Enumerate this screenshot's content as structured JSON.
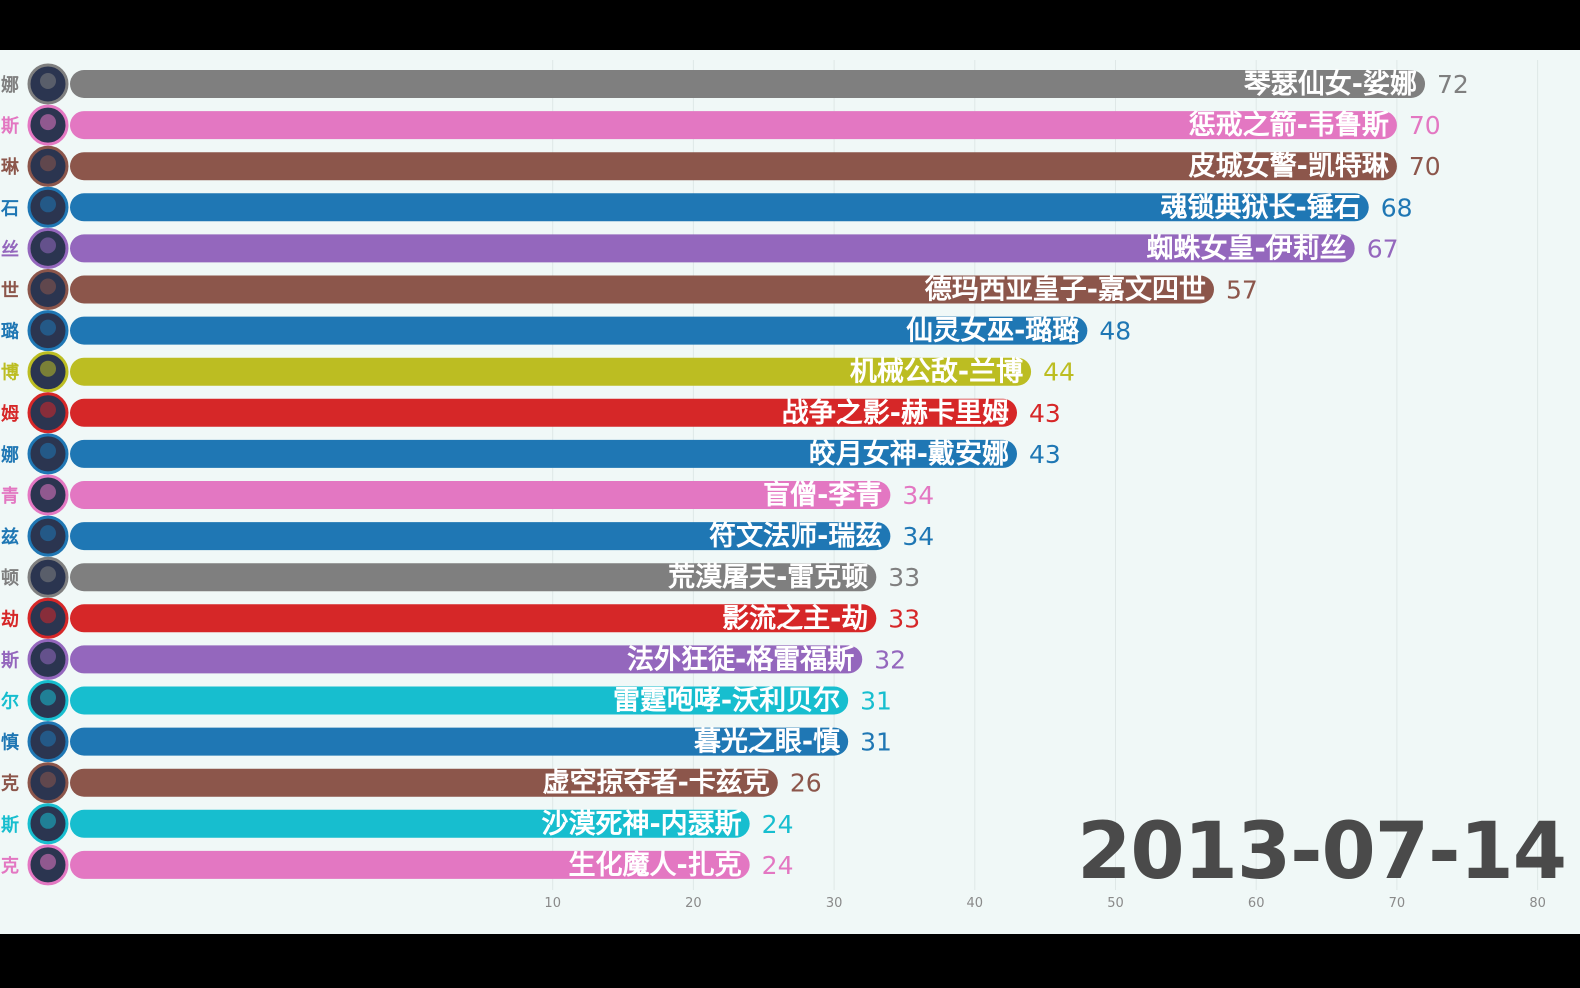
{
  "chart_data": {
    "type": "bar",
    "orientation": "horizontal",
    "frame_label": "2013-07-14",
    "xlim": [
      0,
      80
    ],
    "x_ticks": [
      10,
      20,
      30,
      40,
      50,
      60,
      70,
      80
    ],
    "grid": "vertical",
    "categories": [
      "琴瑟仙女-娑娜",
      "惩戒之箭-韦鲁斯",
      "皮城女警-凯特琳",
      "魂锁典狱长-锤石",
      "蜘蛛女皇-伊莉丝",
      "德玛西亚皇子-嘉文四世",
      "仙灵女巫-璐璐",
      "机械公敌-兰博",
      "战争之影-赫卡里姆",
      "皎月女神-戴安娜",
      "盲僧-李青",
      "符文法师-瑞兹",
      "荒漠屠夫-雷克顿",
      "影流之主-劫",
      "法外狂徒-格雷福斯",
      "雷霆咆哮-沃利贝尔",
      "暮光之眼-慎",
      "虚空掠夺者-卡兹克",
      "沙漠死神-内瑟斯",
      "生化魔人-扎克"
    ],
    "values": [
      72,
      70,
      70,
      68,
      67,
      57,
      48,
      44,
      43,
      43,
      34,
      34,
      33,
      33,
      32,
      31,
      31,
      26,
      24,
      24
    ],
    "side_labels": [
      "娜",
      "斯",
      "琳",
      "石",
      "丝",
      "世",
      "璐",
      "博",
      "姆",
      "娜",
      "青",
      "兹",
      "顿",
      "劫",
      "斯",
      "尔",
      "慎",
      "克",
      "斯",
      "克"
    ],
    "colors": [
      "#7f7f7f",
      "#e377c2",
      "#8c564b",
      "#1f77b4",
      "#9467bd",
      "#8c564b",
      "#1f77b4",
      "#bcbd22",
      "#d62728",
      "#1f77b4",
      "#e377c2",
      "#1f77b4",
      "#7f7f7f",
      "#d62728",
      "#9467bd",
      "#17becf",
      "#1f77b4",
      "#8c564b",
      "#17becf",
      "#e377c2"
    ]
  }
}
